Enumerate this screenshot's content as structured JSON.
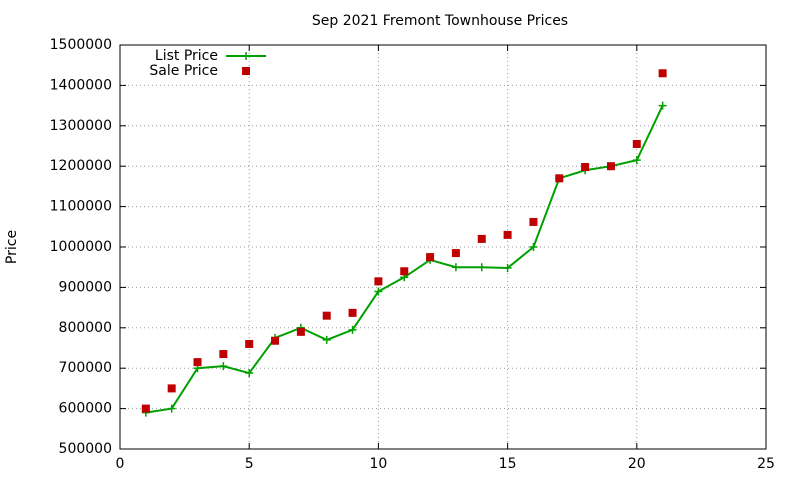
{
  "chart_data": {
    "type": "line",
    "title": "Sep 2021 Fremont Townhouse Prices",
    "y_label": "Price",
    "x": [
      1,
      2,
      3,
      4,
      5,
      6,
      7,
      8,
      9,
      10,
      11,
      12,
      13,
      14,
      15,
      16,
      17,
      18,
      19,
      20,
      21
    ],
    "series": [
      {
        "name": "List Price",
        "color": "#00a000",
        "mark": "line",
        "values": [
          590000,
          600000,
          700000,
          705000,
          688000,
          775000,
          800000,
          770000,
          795000,
          890000,
          925000,
          968000,
          950000,
          950000,
          948000,
          1000000,
          1170000,
          1190000,
          1200000,
          1215000,
          1350000
        ]
      },
      {
        "name": "Sale Price",
        "color": "#c00000",
        "mark": "points",
        "values": [
          600000,
          650000,
          715000,
          735000,
          760000,
          768000,
          790000,
          830000,
          837000,
          915000,
          940000,
          975000,
          985000,
          1020000,
          1030000,
          1062000,
          1170000,
          1198000,
          1200000,
          1255000,
          1430000
        ]
      }
    ],
    "xlim": [
      0,
      25
    ],
    "xticks": [
      0,
      5,
      10,
      15,
      20,
      25
    ],
    "ylim": [
      500000,
      1500000
    ],
    "yticks": [
      500000,
      600000,
      700000,
      800000,
      900000,
      1000000,
      1100000,
      1200000,
      1300000,
      1400000,
      1500000
    ],
    "grid": true,
    "legend": "top-left"
  }
}
